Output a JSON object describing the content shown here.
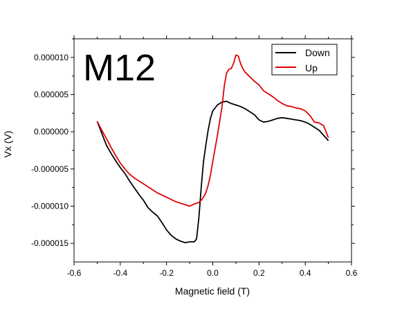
{
  "chart_data": {
    "type": "line",
    "annotation": "M12",
    "xlabel": "Magnetic field (T)",
    "ylabel": "Vx (V)",
    "xlim": [
      -0.6,
      0.6
    ],
    "ylim": [
      -1.75e-05,
      1.25e-05
    ],
    "xticks": [
      -0.6,
      -0.4,
      -0.2,
      0.0,
      0.2,
      0.4,
      0.6
    ],
    "xtick_labels": [
      "-0.6",
      "-0.4",
      "-0.2",
      "0.0",
      "0.2",
      "0.4",
      "0.6"
    ],
    "yticks": [
      -1.5e-05,
      -1e-05,
      -5e-06,
      0.0,
      5e-06,
      1e-05
    ],
    "ytick_labels": [
      "-0.000015",
      "-0.000010",
      "-0.000005",
      "0.000000",
      "0.000005",
      "0.000010"
    ],
    "grid": false,
    "legend_position": "top-right",
    "series": [
      {
        "name": "Down",
        "color": "#000000",
        "x": [
          -0.5,
          -0.48,
          -0.46,
          -0.44,
          -0.42,
          -0.4,
          -0.38,
          -0.36,
          -0.34,
          -0.32,
          -0.3,
          -0.28,
          -0.26,
          -0.24,
          -0.22,
          -0.2,
          -0.18,
          -0.16,
          -0.14,
          -0.12,
          -0.1,
          -0.08,
          -0.07,
          -0.06,
          -0.05,
          -0.04,
          -0.03,
          -0.02,
          -0.01,
          0.0,
          0.02,
          0.04,
          0.06,
          0.08,
          0.1,
          0.12,
          0.14,
          0.16,
          0.18,
          0.2,
          0.22,
          0.24,
          0.26,
          0.28,
          0.3,
          0.32,
          0.34,
          0.36,
          0.38,
          0.4,
          0.42,
          0.44,
          0.46,
          0.48,
          0.5
        ],
        "y": [
          1.4e-06,
          -2e-07,
          -1.8e-06,
          -2.9e-06,
          -3.9e-06,
          -4.8e-06,
          -5.6e-06,
          -6.6e-06,
          -7.5e-06,
          -8.4e-06,
          -9.2e-06,
          -1.02e-05,
          -1.08e-05,
          -1.13e-05,
          -1.22e-05,
          -1.32e-05,
          -1.39e-05,
          -1.44e-05,
          -1.47e-05,
          -1.49e-05,
          -1.48e-05,
          -1.48e-05,
          -1.44e-05,
          -1.15e-05,
          -7.5e-06,
          -4e-06,
          -1.8e-06,
          2e-07,
          1.8e-06,
          2.8e-06,
          3.6e-06,
          4e-06,
          4.1e-06,
          3.8e-06,
          3.6e-06,
          3.4e-06,
          3.1e-06,
          2.7e-06,
          2.3e-06,
          1.6e-06,
          1.3e-06,
          1.4e-06,
          1.6e-06,
          1.8e-06,
          1.9e-06,
          1.8e-06,
          1.7e-06,
          1.6e-06,
          1.5e-06,
          1.3e-06,
          1e-06,
          6e-07,
          2e-07,
          -5e-07,
          -1.2e-06
        ]
      },
      {
        "name": "Up",
        "color": "#dd0000",
        "x": [
          -0.5,
          -0.48,
          -0.46,
          -0.44,
          -0.42,
          -0.4,
          -0.38,
          -0.36,
          -0.34,
          -0.32,
          -0.3,
          -0.28,
          -0.26,
          -0.24,
          -0.22,
          -0.2,
          -0.18,
          -0.16,
          -0.14,
          -0.12,
          -0.1,
          -0.08,
          -0.06,
          -0.05,
          -0.04,
          -0.03,
          -0.02,
          -0.01,
          0.0,
          0.02,
          0.04,
          0.05,
          0.06,
          0.07,
          0.08,
          0.09,
          0.1,
          0.11,
          0.12,
          0.13,
          0.14,
          0.16,
          0.18,
          0.2,
          0.22,
          0.24,
          0.26,
          0.28,
          0.3,
          0.32,
          0.34,
          0.36,
          0.38,
          0.4,
          0.42,
          0.44,
          0.46,
          0.48,
          0.5
        ],
        "y": [
          1.4e-06,
          2e-07,
          -9e-07,
          -2.1e-06,
          -3.2e-06,
          -4.2e-06,
          -5e-06,
          -5.7e-06,
          -6.2e-06,
          -6.6e-06,
          -7e-06,
          -7.4e-06,
          -7.8e-06,
          -8.2e-06,
          -8.5e-06,
          -8.8e-06,
          -9.1e-06,
          -9.4e-06,
          -9.6e-06,
          -9.8e-06,
          -1e-05,
          -9.7e-06,
          -9.5e-06,
          -9.2e-06,
          -8.8e-06,
          -8.2e-06,
          -7.2e-06,
          -5.8e-06,
          -4e-06,
          -5e-07,
          3.4e-06,
          6.2e-06,
          7.9e-06,
          8.4e-06,
          8.5e-06,
          9.2e-06,
          1.03e-05,
          1.02e-05,
          9.2e-06,
          8.5e-06,
          8e-06,
          7.4e-06,
          6.8e-06,
          6.3e-06,
          5.5e-06,
          5.1e-06,
          4.7e-06,
          4.2e-06,
          3.8e-06,
          3.5e-06,
          3.4e-06,
          3.2e-06,
          3.1e-06,
          2.8e-06,
          2.2e-06,
          1.3e-06,
          1.2e-06,
          8e-07,
          -8e-07
        ]
      }
    ]
  }
}
